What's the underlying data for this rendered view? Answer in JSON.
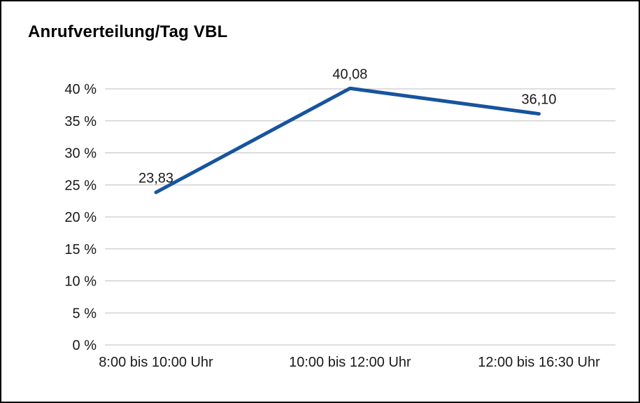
{
  "chart_data": {
    "type": "line",
    "title": "Anrufverteilung/Tag VBL",
    "categories": [
      "8:00 bis 10:00 Uhr",
      "10:00 bis 12:00 Uhr",
      "12:00 bis 16:30 Uhr"
    ],
    "values": [
      23.83,
      40.08,
      36.1
    ],
    "value_labels": [
      "23,83",
      "40,08",
      "36,10"
    ],
    "ylim": [
      0,
      40
    ],
    "ytick_step": 5,
    "ytick_labels": [
      "0 %",
      "5 %",
      "10 %",
      "15 %",
      "20 %",
      "25 %",
      "30 %",
      "35 %",
      "40 %"
    ],
    "grid": true,
    "legend": "none",
    "line_color": "#17549e",
    "grid_color": "#bdbdbd",
    "text_color": "#1a1a1a"
  }
}
